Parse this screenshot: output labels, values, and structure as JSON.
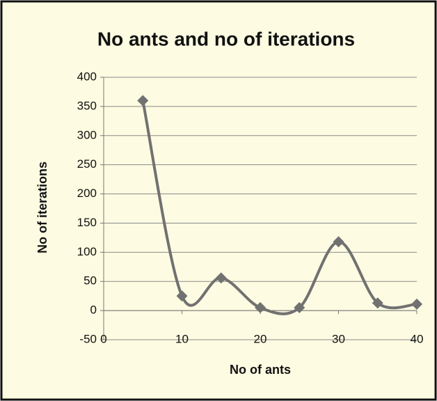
{
  "chart_data": {
    "type": "line",
    "title": "No ants and no of iterations",
    "xlabel": "No of ants",
    "ylabel": "No of iterations",
    "x": [
      5,
      10,
      15,
      20,
      25,
      30,
      35,
      40
    ],
    "values": [
      360,
      25,
      56,
      5,
      5,
      118,
      13,
      11
    ],
    "color": "#717171",
    "smooth": true,
    "marker": "diamond",
    "xlim": [
      0,
      40
    ],
    "xticks": [
      0,
      10,
      20,
      30,
      40
    ],
    "ylim": [
      -50,
      400
    ],
    "yticks": [
      -50,
      0,
      50,
      100,
      150,
      200,
      250,
      300,
      350,
      400
    ],
    "grid": true
  }
}
